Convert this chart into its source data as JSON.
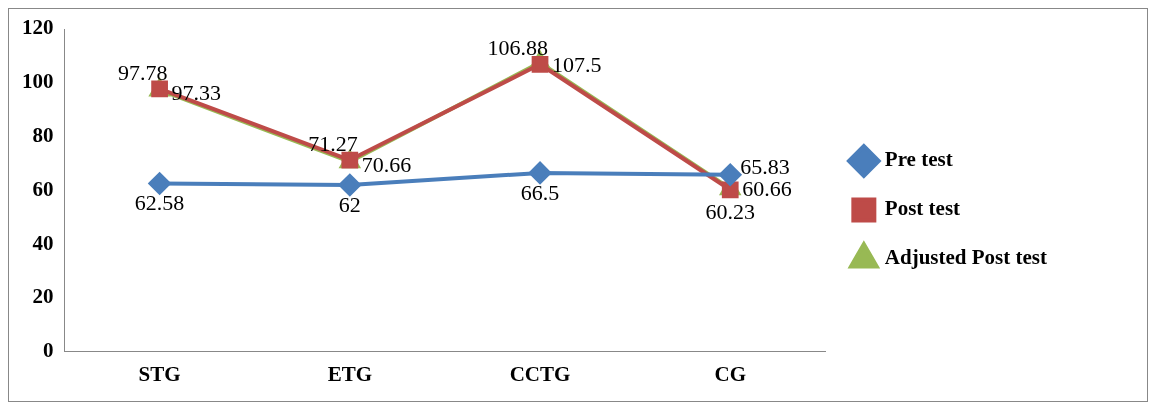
{
  "chart_data": {
    "type": "line",
    "categories": [
      "STG",
      "ETG",
      "CCTG",
      "CG"
    ],
    "series": [
      {
        "name": "Pre test",
        "color": "#4a7ebb",
        "marker": "diamond",
        "values": [
          62.58,
          62,
          66.5,
          65.83
        ]
      },
      {
        "name": "Post test",
        "color": "#be4b48",
        "marker": "square",
        "values": [
          97.78,
          71.27,
          106.88,
          60.23
        ]
      },
      {
        "name": "Adjusted Post test",
        "color": "#98b954",
        "marker": "triangle",
        "values": [
          97.33,
          70.66,
          107.5,
          60.66
        ]
      }
    ],
    "ylim": [
      0,
      120
    ],
    "yticks": [
      0,
      20,
      40,
      60,
      80,
      100,
      120
    ],
    "grid": false,
    "legend": "right",
    "data_labels": true
  }
}
